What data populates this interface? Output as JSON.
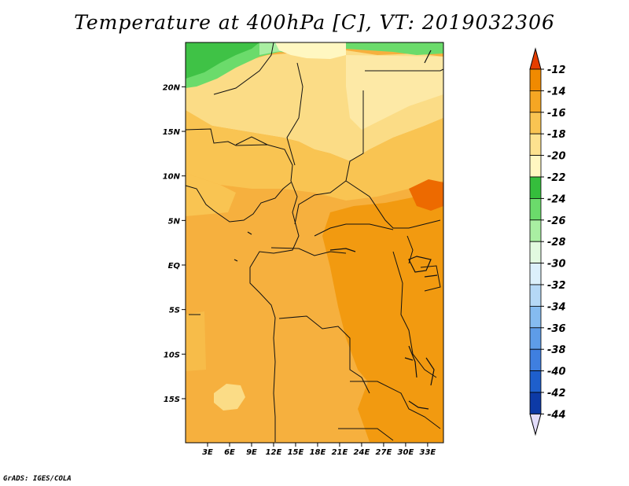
{
  "title": "Temperature at 400hPa [C], VT: 2019032306",
  "footer": "GrADS: IGES/COLA",
  "map": {
    "lat_ticks": [
      {
        "label": "20N",
        "value": 20
      },
      {
        "label": "15N",
        "value": 15
      },
      {
        "label": "10N",
        "value": 10
      },
      {
        "label": "5N",
        "value": 5
      },
      {
        "label": "EQ",
        "value": 0
      },
      {
        "label": "5S",
        "value": -5
      },
      {
        "label": "10S",
        "value": -10
      },
      {
        "label": "15S",
        "value": -15
      }
    ],
    "lon_ticks": [
      {
        "label": "3E",
        "value": 3
      },
      {
        "label": "6E",
        "value": 6
      },
      {
        "label": "9E",
        "value": 9
      },
      {
        "label": "12E",
        "value": 12
      },
      {
        "label": "15E",
        "value": 15
      },
      {
        "label": "18E",
        "value": 18
      },
      {
        "label": "21E",
        "value": 21
      },
      {
        "label": "24E",
        "value": 24
      },
      {
        "label": "27E",
        "value": 27
      },
      {
        "label": "30E",
        "value": 30
      },
      {
        "label": "33E",
        "value": 33
      }
    ]
  },
  "colorbar": {
    "levels": [
      {
        "label": "-12",
        "color": "#ed5200"
      },
      {
        "label": "-14",
        "color": "#f08a00"
      },
      {
        "label": "-16",
        "color": "#f5a623"
      },
      {
        "label": "-18",
        "color": "#f9c452"
      },
      {
        "label": "-20",
        "color": "#fde28f"
      },
      {
        "label": "-22",
        "color": "#fff7c1"
      },
      {
        "label": "-24",
        "color": "#35be3c"
      },
      {
        "label": "-26",
        "color": "#6bdb6b"
      },
      {
        "label": "-28",
        "color": "#a9efa2"
      },
      {
        "label": "-30",
        "color": "#e2fae0"
      },
      {
        "label": "-32",
        "color": "#dcf0fb"
      },
      {
        "label": "-34",
        "color": "#b5d8f6"
      },
      {
        "label": "-36",
        "color": "#85bbf0"
      },
      {
        "label": "-38",
        "color": "#5e9ce8"
      },
      {
        "label": "-40",
        "color": "#3f7fe0"
      },
      {
        "label": "-42",
        "color": "#1e5fcc"
      },
      {
        "label": "-44",
        "color": "#0d3aa6"
      }
    ],
    "top_arrow_color": "#e53d00",
    "bottom_arrow_color": "#e3ddfb",
    "extra_swatch_color": "#0b1a7a"
  }
}
